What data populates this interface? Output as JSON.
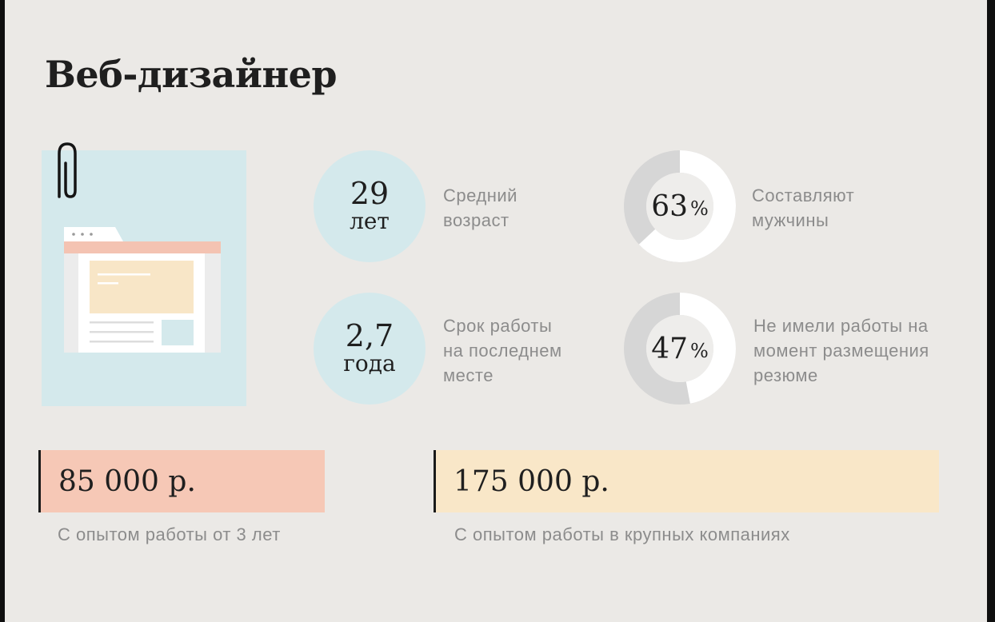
{
  "title": "Веб-дизайнер",
  "colors": {
    "background": "#ebe9e6",
    "circle": "#d4e9ec",
    "donut_track": "#d6d6d6",
    "donut_fill": "#ffffff",
    "salary_low": "#f6c8b6",
    "salary_high": "#f9e7c8",
    "illustration_bg": "#d4e9ec"
  },
  "stats": {
    "age": {
      "value": "29",
      "unit": "лет",
      "label_line1": "Средний",
      "label_line2": "возраст"
    },
    "tenure": {
      "value": "2,7",
      "unit": "года",
      "label_line1": "Срок работы",
      "label_line2": "на последнем",
      "label_line3": "месте"
    }
  },
  "percents": {
    "men": {
      "value": "63",
      "symbol": "%",
      "fraction": 0.63,
      "label_line1": "Составляют",
      "label_line2": "мужчины"
    },
    "unemployed": {
      "value": "47",
      "symbol": "%",
      "fraction": 0.47,
      "label_line1": "Не имели работы на",
      "label_line2": "момент размещения",
      "label_line3": "резюме"
    }
  },
  "salaries": {
    "experienced": {
      "amount": "85 000 р.",
      "caption": "С опытом работы от 3 лет"
    },
    "large_company": {
      "amount": "175 000 р.",
      "caption": "С опытом работы в крупных компаниях"
    }
  },
  "icons": {
    "paperclip": "paperclip-icon",
    "browser": "browser-window-icon"
  }
}
